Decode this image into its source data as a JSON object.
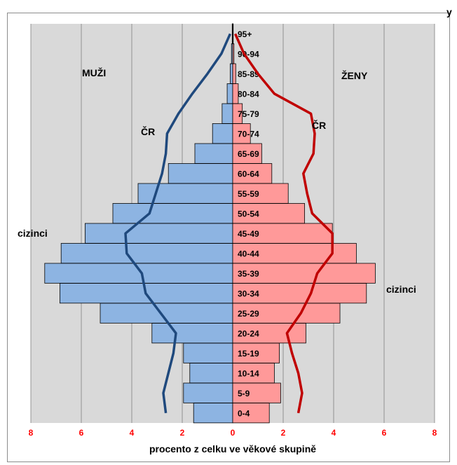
{
  "top_mark": "y",
  "chart_data": {
    "type": "bar",
    "orientation": "horizontal",
    "title": "",
    "xlabel": "procento z celku ve věkové skupině",
    "ylabel": "",
    "xlim": [
      -8,
      8
    ],
    "x_ticks": [
      "8",
      "6",
      "4",
      "2",
      "0",
      "2",
      "4",
      "6",
      "8"
    ],
    "grid": true,
    "legend": "none",
    "categories": [
      "0-4",
      "5-9",
      "10-14",
      "15-19",
      "20-24",
      "25-29",
      "30-34",
      "35-39",
      "40-44",
      "45-49",
      "50-54",
      "55-59",
      "60-64",
      "65-69",
      "70-74",
      "75-79",
      "80-84",
      "85-89",
      "90-94",
      "95+"
    ],
    "series": [
      {
        "name": "cizinci",
        "side": "left",
        "color": "#8db4e2",
        "values": [
          1.55,
          1.95,
          1.7,
          1.95,
          3.2,
          5.25,
          6.85,
          7.45,
          6.8,
          5.85,
          4.75,
          3.75,
          2.55,
          1.5,
          0.8,
          0.42,
          0.22,
          0.1,
          0.05,
          0.02
        ]
      },
      {
        "name": "cizinci",
        "side": "right",
        "color": "#ff9999",
        "values": [
          1.45,
          1.9,
          1.65,
          1.85,
          2.9,
          4.25,
          5.3,
          5.65,
          4.9,
          3.95,
          2.85,
          2.2,
          1.55,
          1.15,
          0.7,
          0.38,
          0.22,
          0.12,
          0.05,
          0.02
        ]
      },
      {
        "name": "ČR",
        "side": "left",
        "color": "#1f497d",
        "values": [
          2.65,
          2.75,
          2.55,
          2.35,
          2.25,
          2.85,
          3.45,
          3.6,
          4.2,
          4.25,
          3.3,
          3.05,
          2.8,
          2.65,
          2.6,
          2.15,
          1.6,
          1.0,
          0.45,
          0.1
        ]
      },
      {
        "name": "ČR",
        "side": "right",
        "color": "#c00000",
        "values": [
          2.6,
          2.75,
          2.6,
          2.35,
          2.15,
          2.7,
          3.1,
          3.35,
          3.95,
          3.95,
          3.15,
          2.95,
          2.8,
          3.2,
          3.25,
          3.1,
          1.65,
          1.0,
          0.45,
          0.1
        ]
      }
    ],
    "annotations": {
      "men": "MUŽI",
      "women": "ŽENY",
      "cr_left": "ČR",
      "cr_right": "ČR",
      "foreigners_left": "cizinci",
      "foreigners_right": "cizinci"
    }
  }
}
